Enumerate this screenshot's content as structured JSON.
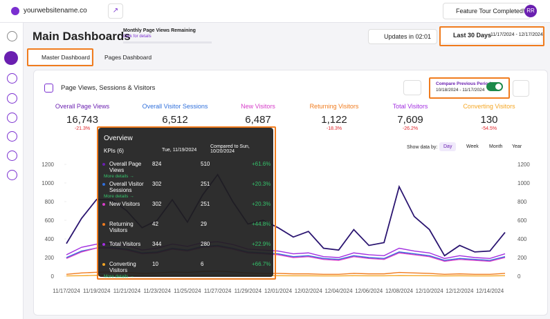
{
  "header": {
    "site": "yourwebsitename.co",
    "feature_tour": "Feature Tour Completed!",
    "avatar": "RR"
  },
  "page": {
    "title": "Main Dashboards",
    "quota_label": "Monthly Page Views Remaining",
    "quota_link": "Click for details",
    "updates": "Updates in 02:01",
    "range_label": "Last 30 Days",
    "range_dates": "11/17/2024 - 12/17/2024"
  },
  "tabs": [
    "Master Dashboard",
    "Pages Dashboard"
  ],
  "card": {
    "title": "Page Views, Sessions & Visitors",
    "compare_label": "Compare Previous Period",
    "compare_dates": "10/18/2024 - 11/17/2024",
    "show_by_label": "Show data by:",
    "show_by_options": [
      "Day",
      "Week",
      "Month",
      "Year"
    ]
  },
  "kpis": [
    {
      "name": "Overall Page Views",
      "value": "16,743",
      "change": "-21.3%",
      "color": "#6a1fb0"
    },
    {
      "name": "Overall Visitor Sessions",
      "value": "6,512",
      "color": "#2f6fdb"
    },
    {
      "name": "New Visitors",
      "value": "6,487",
      "color": "#d63cc9"
    },
    {
      "name": "Returning Visitors",
      "value": "1,122",
      "change": "-18.3%",
      "color": "#f07b1d"
    },
    {
      "name": "Total Visitors",
      "value": "7,609",
      "change": "-26.2%",
      "color": "#a22ee0"
    },
    {
      "name": "Converting Visitors",
      "value": "130",
      "change": "-54.5%",
      "color": "#f5a623"
    }
  ],
  "tooltip": {
    "title": "Overview",
    "kpis": "KPIs  (6)",
    "date": "Tue, 11/19/2024",
    "compare": "Compared to Sun, 10/20/2024",
    "more": "More details →",
    "rows": [
      {
        "name": "Overall Page Views",
        "current": "824",
        "previous": "510",
        "change": "+61.6%",
        "more": true
      },
      {
        "name": "Overall Visitor Sessions",
        "current": "302",
        "previous": "251",
        "change": "+20.3%",
        "more": true
      },
      {
        "name": "New Visitors",
        "current": "302",
        "previous": "251",
        "change": "+20.3%",
        "more": false
      },
      {
        "name": "Returning Visitors",
        "current": "42",
        "previous": "29",
        "change": "+44.8%",
        "more": false
      },
      {
        "name": "Total Visitors",
        "current": "344",
        "previous": "280",
        "change": "+22.9%",
        "more": false
      },
      {
        "name": "Converting Visitors",
        "current": "10",
        "previous": "6",
        "change": "+66.7%",
        "more": true
      }
    ]
  },
  "chart": {
    "type": "line",
    "categories": [
      "11/17/2024",
      null,
      "11/19/2024",
      null,
      "11/21/2024",
      null,
      "11/23/2024",
      null,
      "11/25/2024",
      null,
      "11/27/2024",
      null,
      "11/29/2024",
      null,
      "12/01/2024",
      null,
      "12/02/2024",
      null,
      "12/04/2024",
      null,
      "12/06/2024",
      null,
      "12/08/2024",
      null,
      "12/10/2024",
      null,
      "12/12/2024",
      null,
      "12/14/2024",
      null
    ],
    "ylim": [
      0,
      1200
    ],
    "yticks": [
      0,
      200,
      400,
      600,
      800,
      1000,
      1200
    ],
    "series": [
      {
        "name": "Overall Page Views",
        "color": "#2a1470",
        "values": [
          350,
          620,
          824,
          820,
          700,
          520,
          600,
          820,
          580,
          870,
          1090,
          800,
          560,
          600,
          520,
          420,
          480,
          300,
          280,
          500,
          330,
          360,
          960,
          640,
          500,
          220,
          330,
          260,
          270,
          470
        ]
      },
      {
        "name": "Overall Visitor Sessions",
        "color": "#2f6fdb",
        "values": [
          200,
          270,
          302,
          310,
          290,
          250,
          260,
          300,
          280,
          320,
          330,
          300,
          260,
          250,
          240,
          210,
          220,
          190,
          180,
          220,
          200,
          190,
          260,
          240,
          220,
          170,
          190,
          180,
          170,
          210
        ]
      },
      {
        "name": "New Visitors",
        "color": "#d63cc9",
        "values": [
          190,
          260,
          302,
          300,
          280,
          240,
          250,
          290,
          270,
          310,
          320,
          290,
          250,
          240,
          230,
          200,
          210,
          180,
          170,
          210,
          190,
          180,
          250,
          230,
          210,
          160,
          180,
          170,
          160,
          200
        ]
      },
      {
        "name": "Returning Visitors",
        "color": "#f07b1d",
        "values": [
          20,
          35,
          42,
          45,
          40,
          30,
          35,
          45,
          40,
          50,
          55,
          45,
          35,
          30,
          30,
          25,
          25,
          20,
          20,
          30,
          25,
          25,
          40,
          35,
          30,
          20,
          25,
          20,
          20,
          30
        ]
      },
      {
        "name": "Total Visitors",
        "color": "#a22ee0",
        "values": [
          230,
          310,
          344,
          350,
          330,
          280,
          300,
          345,
          320,
          360,
          370,
          340,
          290,
          280,
          270,
          240,
          250,
          210,
          200,
          250,
          230,
          220,
          300,
          270,
          250,
          190,
          220,
          200,
          190,
          240
        ]
      },
      {
        "name": "Converting Visitors",
        "color": "#f5a623",
        "values": [
          3,
          5,
          10,
          9,
          7,
          5,
          6,
          8,
          7,
          10,
          11,
          8,
          6,
          5,
          5,
          4,
          4,
          3,
          3,
          5,
          4,
          4,
          7,
          6,
          5,
          3,
          4,
          3,
          3,
          5
        ]
      }
    ]
  }
}
